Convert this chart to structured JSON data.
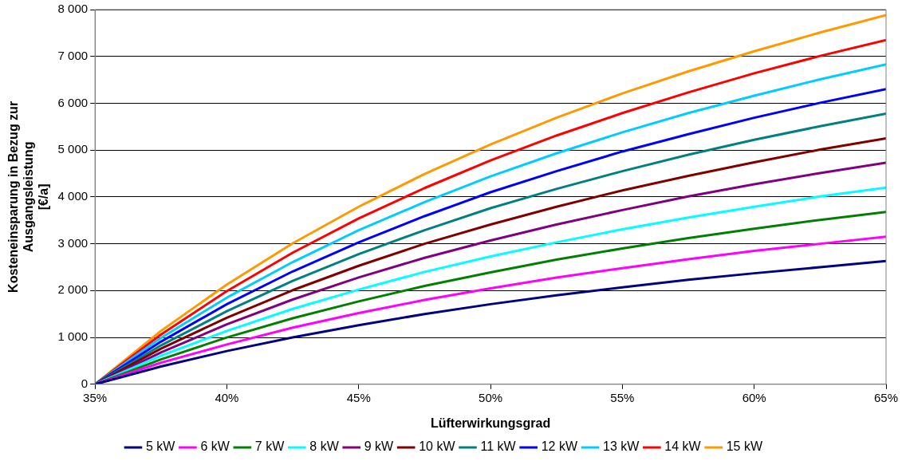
{
  "chart_data": {
    "type": "line",
    "xlabel": "Lüfterwirkungsgrad",
    "ylabel": "Kosteneinsparung in Bezug zur\nAusgangsleistung\n[€/a]",
    "x": [
      35,
      37.5,
      40,
      42.5,
      45,
      47.5,
      50,
      52.5,
      55,
      57.5,
      60,
      62.5,
      65
    ],
    "xlim": [
      35,
      65
    ],
    "xticks": [
      {
        "value": 35,
        "label": "35%"
      },
      {
        "value": 40,
        "label": "40%"
      },
      {
        "value": 45,
        "label": "45%"
      },
      {
        "value": 50,
        "label": "50%"
      },
      {
        "value": 55,
        "label": "55%"
      },
      {
        "value": 60,
        "label": "60%"
      },
      {
        "value": 65,
        "label": "65%"
      }
    ],
    "ylim": [
      0,
      8000
    ],
    "yticks": [
      0,
      {
        "value": 1000,
        "label": "1 000"
      },
      {
        "value": 2000,
        "label": "2 000"
      },
      {
        "value": 3000,
        "label": "3 000"
      },
      {
        "value": 4000,
        "label": "4 000"
      },
      {
        "value": 5000,
        "label": "5 000"
      },
      {
        "value": 6000,
        "label": "6 000"
      },
      {
        "value": 7000,
        "label": "7 000"
      },
      {
        "value": 8000,
        "label": "8 000"
      }
    ],
    "grid": "y",
    "legend": "bottom",
    "marker": "none",
    "line_style": "solid",
    "series": [
      {
        "name": "5 kW",
        "color": "#000080",
        "values": [
          0,
          380,
          710,
          1000,
          1260,
          1500,
          1710,
          1900,
          2070,
          2230,
          2370,
          2500,
          2630
        ]
      },
      {
        "name": "6 kW",
        "color": "#ff00ff",
        "values": [
          0,
          460,
          850,
          1210,
          1520,
          1800,
          2050,
          2280,
          2480,
          2670,
          2850,
          3000,
          3150
        ]
      },
      {
        "name": "7 kW",
        "color": "#008000",
        "values": [
          0,
          530,
          1000,
          1410,
          1770,
          2100,
          2390,
          2660,
          2900,
          3120,
          3320,
          3510,
          3680
        ]
      },
      {
        "name": "8 kW",
        "color": "#00ffff",
        "values": [
          0,
          610,
          1140,
          1610,
          2020,
          2400,
          2730,
          3030,
          3310,
          3560,
          3790,
          4010,
          4200
        ]
      },
      {
        "name": "9 kW",
        "color": "#800080",
        "values": [
          0,
          680,
          1280,
          1810,
          2280,
          2700,
          3070,
          3410,
          3720,
          4010,
          4270,
          4510,
          4730
        ]
      },
      {
        "name": "10 kW",
        "color": "#800000",
        "values": [
          0,
          760,
          1420,
          2010,
          2530,
          3000,
          3410,
          3790,
          4140,
          4450,
          4740,
          5010,
          5250
        ]
      },
      {
        "name": "11 kW",
        "color": "#008080",
        "values": [
          0,
          830,
          1560,
          2210,
          2780,
          3290,
          3760,
          4170,
          4550,
          4900,
          5220,
          5510,
          5780
        ]
      },
      {
        "name": "12 kW",
        "color": "#0000ff",
        "values": [
          0,
          910,
          1710,
          2410,
          3030,
          3590,
          4100,
          4550,
          4970,
          5340,
          5690,
          6010,
          6300
        ]
      },
      {
        "name": "13 kW",
        "color": "#00ccff",
        "values": [
          0,
          990,
          1850,
          2610,
          3290,
          3890,
          4440,
          4930,
          5380,
          5790,
          6160,
          6510,
          6830
        ]
      },
      {
        "name": "14 kW",
        "color": "#ff0000",
        "values": [
          0,
          1060,
          1990,
          2810,
          3540,
          4190,
          4780,
          5310,
          5790,
          6230,
          6640,
          7010,
          7350
        ]
      },
      {
        "name": "15 kW",
        "color": "#ff9900",
        "values": [
          0,
          1140,
          2130,
          3010,
          3790,
          4490,
          5120,
          5690,
          6210,
          6680,
          7110,
          7510,
          7880
        ]
      }
    ]
  }
}
